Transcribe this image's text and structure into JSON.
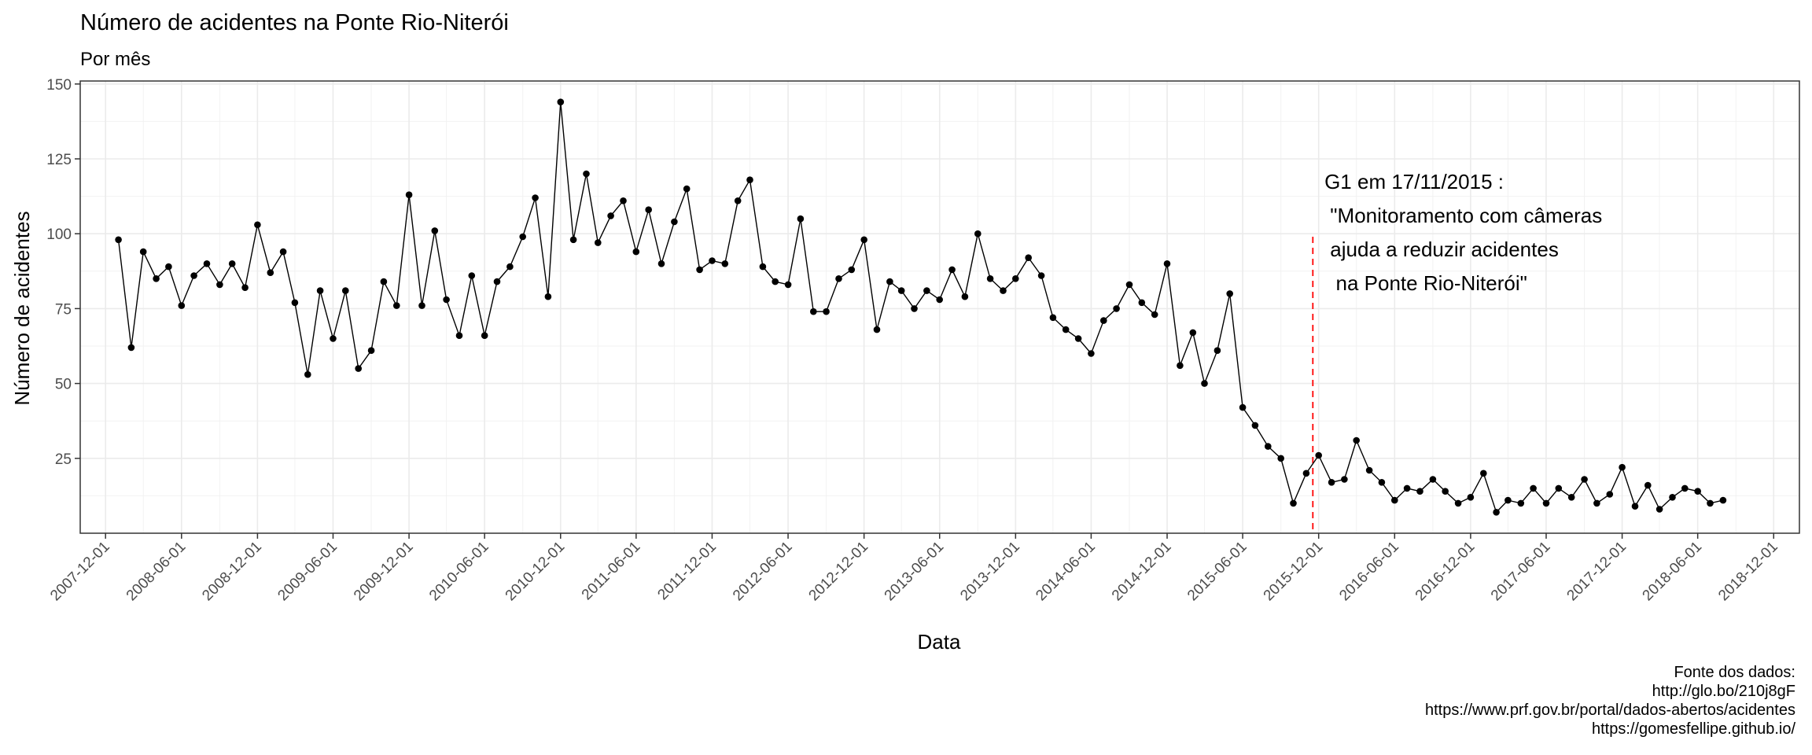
{
  "chart_data": {
    "type": "line",
    "title": "Número de acidentes na Ponte Rio-Niterói",
    "subtitle": "Por mês",
    "xlabel": "Data",
    "ylabel": "Número de acidentes",
    "x_ticks": [
      "2007-12-01",
      "2008-06-01",
      "2008-12-01",
      "2009-06-01",
      "2009-12-01",
      "2010-06-01",
      "2010-12-01",
      "2011-06-01",
      "2011-12-01",
      "2012-06-01",
      "2012-12-01",
      "2013-06-01",
      "2013-12-01",
      "2014-06-01",
      "2014-12-01",
      "2015-06-01",
      "2015-12-01",
      "2016-06-01",
      "2016-12-01",
      "2017-06-01",
      "2017-12-01",
      "2018-06-01",
      "2018-12-01"
    ],
    "y_ticks": [
      25,
      50,
      75,
      100,
      125,
      150
    ],
    "xlim": [
      "2007-10-01",
      "2019-02-01"
    ],
    "ylim": [
      0,
      151
    ],
    "grid": true,
    "marker": "point",
    "color": "#000000",
    "start_month": "2008-01",
    "values": [
      98,
      62,
      94,
      85,
      89,
      76,
      86,
      90,
      83,
      90,
      82,
      103,
      87,
      94,
      77,
      53,
      81,
      65,
      81,
      55,
      61,
      84,
      76,
      113,
      76,
      101,
      78,
      66,
      86,
      66,
      84,
      89,
      99,
      112,
      79,
      144,
      98,
      120,
      97,
      106,
      111,
      94,
      108,
      90,
      104,
      115,
      88,
      91,
      90,
      111,
      118,
      89,
      84,
      83,
      105,
      74,
      74,
      85,
      88,
      98,
      68,
      84,
      81,
      75,
      81,
      78,
      88,
      79,
      100,
      85,
      81,
      85,
      92,
      86,
      72,
      68,
      65,
      60,
      71,
      75,
      83,
      77,
      73,
      90,
      56,
      67,
      50,
      61,
      80,
      42,
      36,
      29,
      25,
      10,
      20,
      26,
      17,
      18,
      31,
      21,
      17,
      11,
      15,
      14,
      18,
      14,
      10,
      12,
      20,
      7,
      11,
      10,
      15,
      10,
      15,
      12,
      18,
      10,
      13,
      22,
      9,
      16,
      8,
      12,
      15,
      14,
      10,
      11
    ],
    "vline": {
      "date": "2015-11-17",
      "color": "#ff0000",
      "style": "dashed",
      "y_top": 99
    },
    "annotation": {
      "lines": [
        "G1 em 17/11/2015 :",
        " \"Monitoramento com câmeras",
        " ajuda a reduzir acidentes",
        "  na Ponte Rio-Niterói\""
      ],
      "x": "2015-12-15",
      "y": 115
    },
    "caption": [
      "Fonte dos dados:",
      "http://glo.bo/210j8gF",
      "https://www.prf.gov.br/portal/dados-abertos/acidentes",
      "https://gomesfellipe.github.io/"
    ]
  }
}
